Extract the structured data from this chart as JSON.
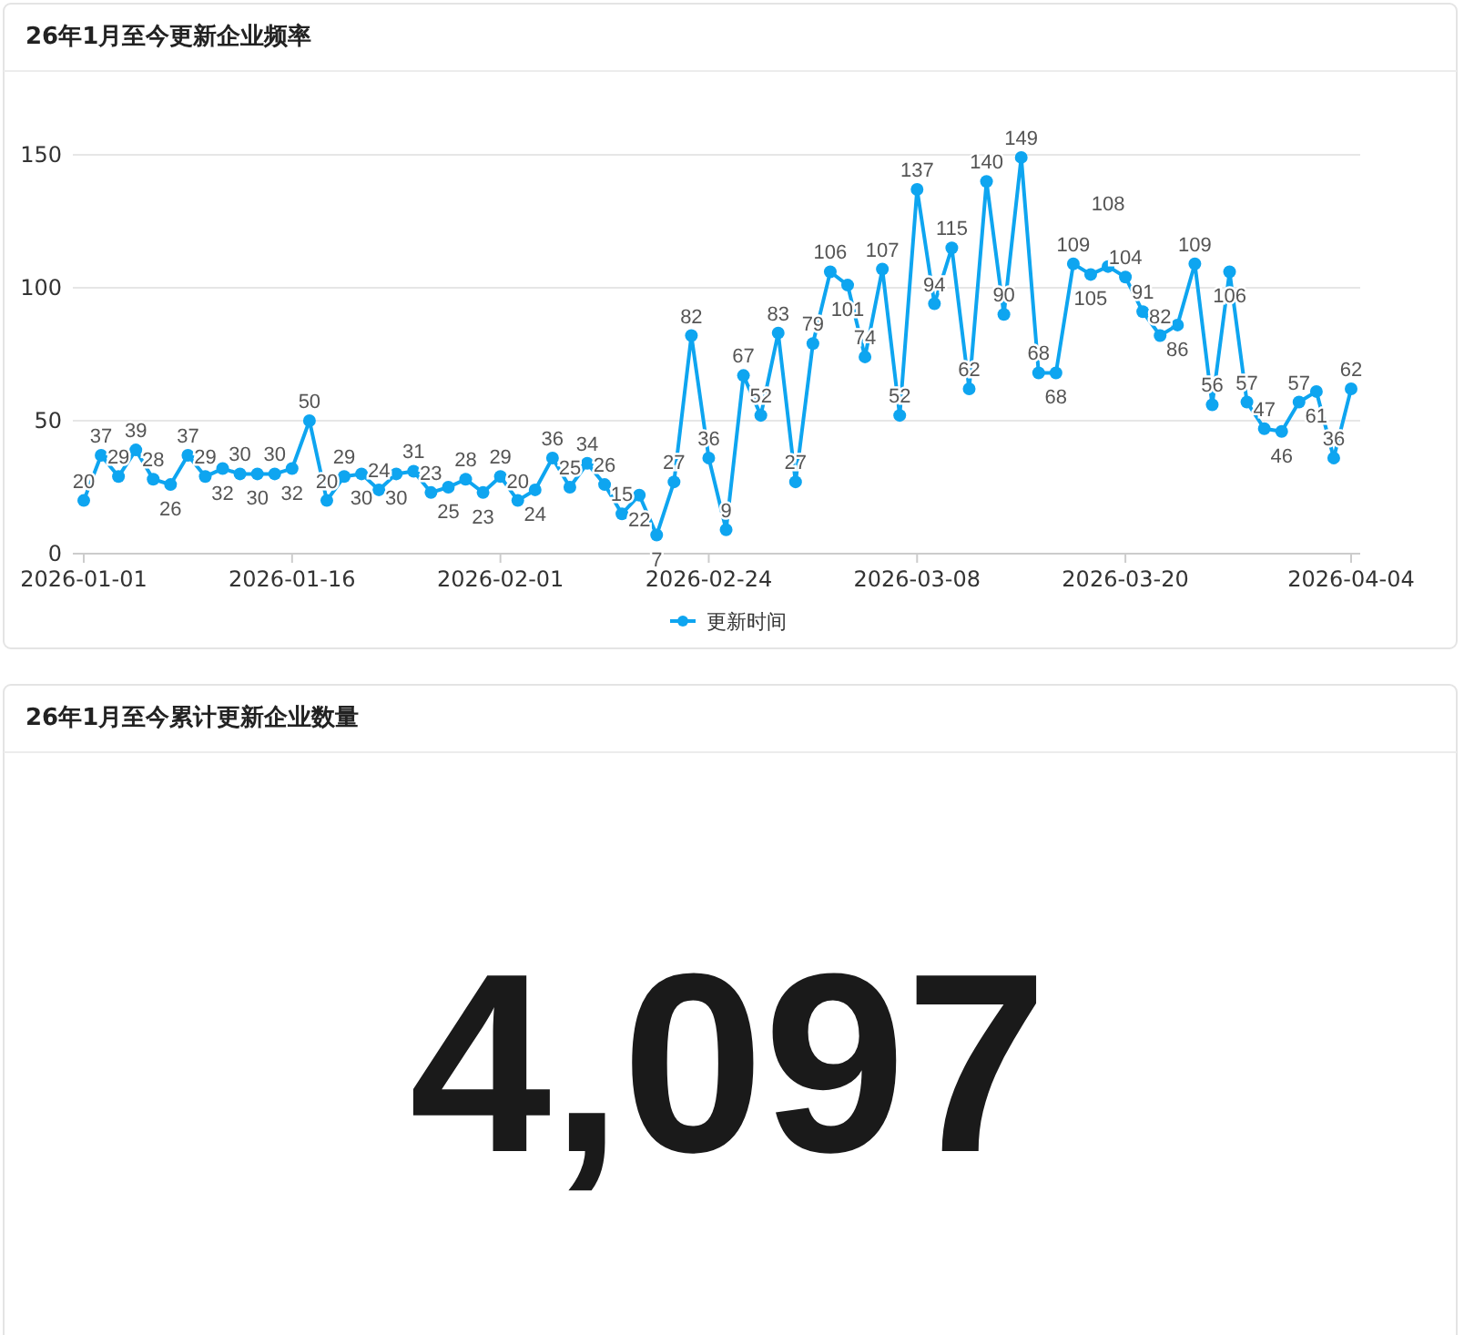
{
  "chart_data": [
    {
      "type": "line",
      "title": "26年1月至今更新企业频率",
      "categories": [
        "2026-01-01",
        null,
        null,
        null,
        null,
        null,
        null,
        null,
        null,
        null,
        null,
        null,
        "2026-01-16",
        null,
        null,
        null,
        null,
        null,
        null,
        null,
        null,
        null,
        null,
        null,
        "2026-02-01",
        null,
        null,
        null,
        null,
        null,
        null,
        null,
        null,
        null,
        null,
        null,
        "2026-02-24",
        null,
        null,
        null,
        null,
        null,
        null,
        null,
        null,
        null,
        null,
        null,
        "2026-03-08",
        null,
        null,
        null,
        null,
        null,
        null,
        null,
        null,
        null,
        null,
        null,
        "2026-03-20",
        null,
        null,
        null,
        null,
        null,
        null,
        null,
        null,
        null,
        null,
        null,
        null,
        "2026-04-04"
      ],
      "series": [
        {
          "name": "更新时间",
          "color": "#0ea5f0",
          "values": [
            20,
            37,
            29,
            39,
            28,
            26,
            37,
            29,
            32,
            30,
            30,
            30,
            32,
            50,
            20,
            29,
            30,
            24,
            30,
            31,
            23,
            25,
            28,
            23,
            29,
            20,
            24,
            36,
            25,
            34,
            26,
            15,
            22,
            7,
            27,
            82,
            36,
            9,
            67,
            52,
            83,
            27,
            79,
            106,
            101,
            74,
            107,
            52,
            137,
            94,
            115,
            62,
            140,
            90,
            149,
            68,
            68,
            109,
            105,
            108,
            104,
            91,
            82,
            86,
            109,
            56,
            106,
            57,
            47,
            46,
            57,
            61,
            36,
            62
          ]
        }
      ],
      "ylim": [
        0,
        150
      ],
      "yticks": [
        0,
        50,
        100,
        150
      ],
      "grid": "y",
      "legend": "bottom",
      "marker": "circle",
      "line_style": "solid",
      "data_labels": true
    },
    {
      "type": "other",
      "title": "26年1月至今累计更新企业数量",
      "annotations": [
        "4,097"
      ]
    }
  ]
}
